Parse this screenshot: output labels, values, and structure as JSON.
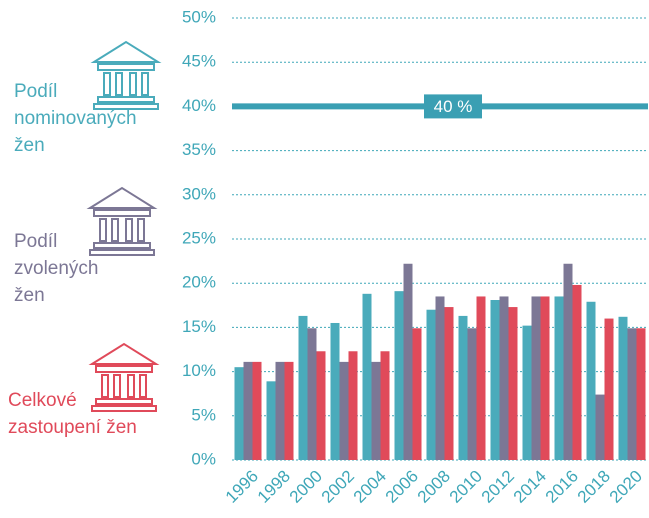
{
  "chart_data": {
    "type": "bar",
    "categories": [
      "1996",
      "1998",
      "2000",
      "2002",
      "2004",
      "2006",
      "2008",
      "2010",
      "2012",
      "2014",
      "2016",
      "2018",
      "2020"
    ],
    "series": [
      {
        "name": "Podíl nominovaných žen",
        "color": "#4aabbb",
        "values": [
          10.5,
          8.9,
          16.3,
          15.5,
          18.8,
          19.1,
          17.0,
          16.3,
          18.1,
          15.2,
          18.5,
          17.9,
          16.2
        ]
      },
      {
        "name": "Podíl zvolených žen",
        "color": "#7c7795",
        "values": [
          11.1,
          11.1,
          14.9,
          11.1,
          11.1,
          22.2,
          18.5,
          14.9,
          18.5,
          18.5,
          22.2,
          7.4,
          14.9
        ]
      },
      {
        "name": "Celkové zastoupení žen",
        "color": "#e04a5a",
        "values": [
          11.1,
          11.1,
          12.3,
          12.3,
          12.3,
          14.9,
          17.3,
          18.5,
          17.3,
          18.5,
          19.8,
          16.0,
          14.9
        ]
      }
    ],
    "ylim": [
      0,
      50
    ],
    "yticks": [
      {
        "value": 0,
        "label": "0%"
      },
      {
        "value": 5,
        "label": "5%"
      },
      {
        "value": 10,
        "label": "10%"
      },
      {
        "value": 15,
        "label": "15%"
      },
      {
        "value": 20,
        "label": "20%"
      },
      {
        "value": 25,
        "label": "25%"
      },
      {
        "value": 30,
        "label": "30%"
      },
      {
        "value": 35,
        "label": "35%"
      },
      {
        "value": 40,
        "label": "40%"
      },
      {
        "value": 45,
        "label": "45%"
      },
      {
        "value": 50,
        "label": "50%"
      }
    ],
    "grid": true,
    "reference_line": {
      "value": 40,
      "label": "40 %",
      "color": "#3a9fb3"
    }
  }
}
